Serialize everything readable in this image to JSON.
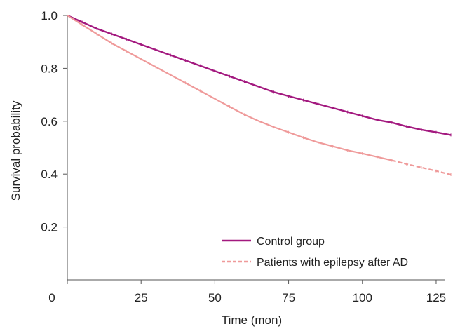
{
  "chart_data": {
    "type": "line",
    "title": "",
    "xlabel": "Time (mon)",
    "ylabel": "Survival probability",
    "xlim": [
      0,
      130
    ],
    "ylim": [
      0,
      1.0
    ],
    "x_ticks": [
      0,
      25,
      50,
      75,
      100,
      125
    ],
    "x_tick_labels": [
      "0",
      "25",
      "50",
      "75",
      "100",
      "125"
    ],
    "y_ticks": [
      0.2,
      0.4,
      0.6,
      0.8,
      1.0
    ],
    "y_tick_labels": [
      "0.2",
      "0.4",
      "0.6",
      "0.8",
      "1.0"
    ],
    "y_zero_label": "0",
    "grid": false,
    "legend_position": "bottom-right",
    "series": [
      {
        "name": "Control group",
        "color": "#a3197f",
        "line_style": "solid",
        "x": [
          0,
          5,
          10,
          15,
          20,
          25,
          30,
          35,
          40,
          45,
          50,
          55,
          60,
          65,
          70,
          75,
          80,
          85,
          90,
          95,
          100,
          105,
          110,
          115,
          120,
          125,
          130
        ],
        "y": [
          1.0,
          0.975,
          0.95,
          0.93,
          0.91,
          0.89,
          0.87,
          0.85,
          0.83,
          0.81,
          0.79,
          0.77,
          0.75,
          0.73,
          0.71,
          0.695,
          0.68,
          0.665,
          0.65,
          0.635,
          0.62,
          0.605,
          0.595,
          0.58,
          0.568,
          0.558,
          0.548
        ]
      },
      {
        "name": "Patients with epilepsy after AD",
        "color": "#ef9a9a",
        "line_style": "solid-then-dashed",
        "x": [
          0,
          5,
          10,
          15,
          20,
          25,
          30,
          35,
          40,
          45,
          50,
          55,
          60,
          65,
          70,
          75,
          80,
          85,
          90,
          95,
          100,
          105,
          110,
          115,
          120,
          125,
          130
        ],
        "y": [
          1.0,
          0.965,
          0.93,
          0.895,
          0.865,
          0.835,
          0.805,
          0.775,
          0.745,
          0.715,
          0.685,
          0.655,
          0.625,
          0.6,
          0.578,
          0.558,
          0.538,
          0.52,
          0.505,
          0.49,
          0.478,
          0.465,
          0.452,
          0.438,
          0.425,
          0.412,
          0.398
        ]
      }
    ]
  }
}
